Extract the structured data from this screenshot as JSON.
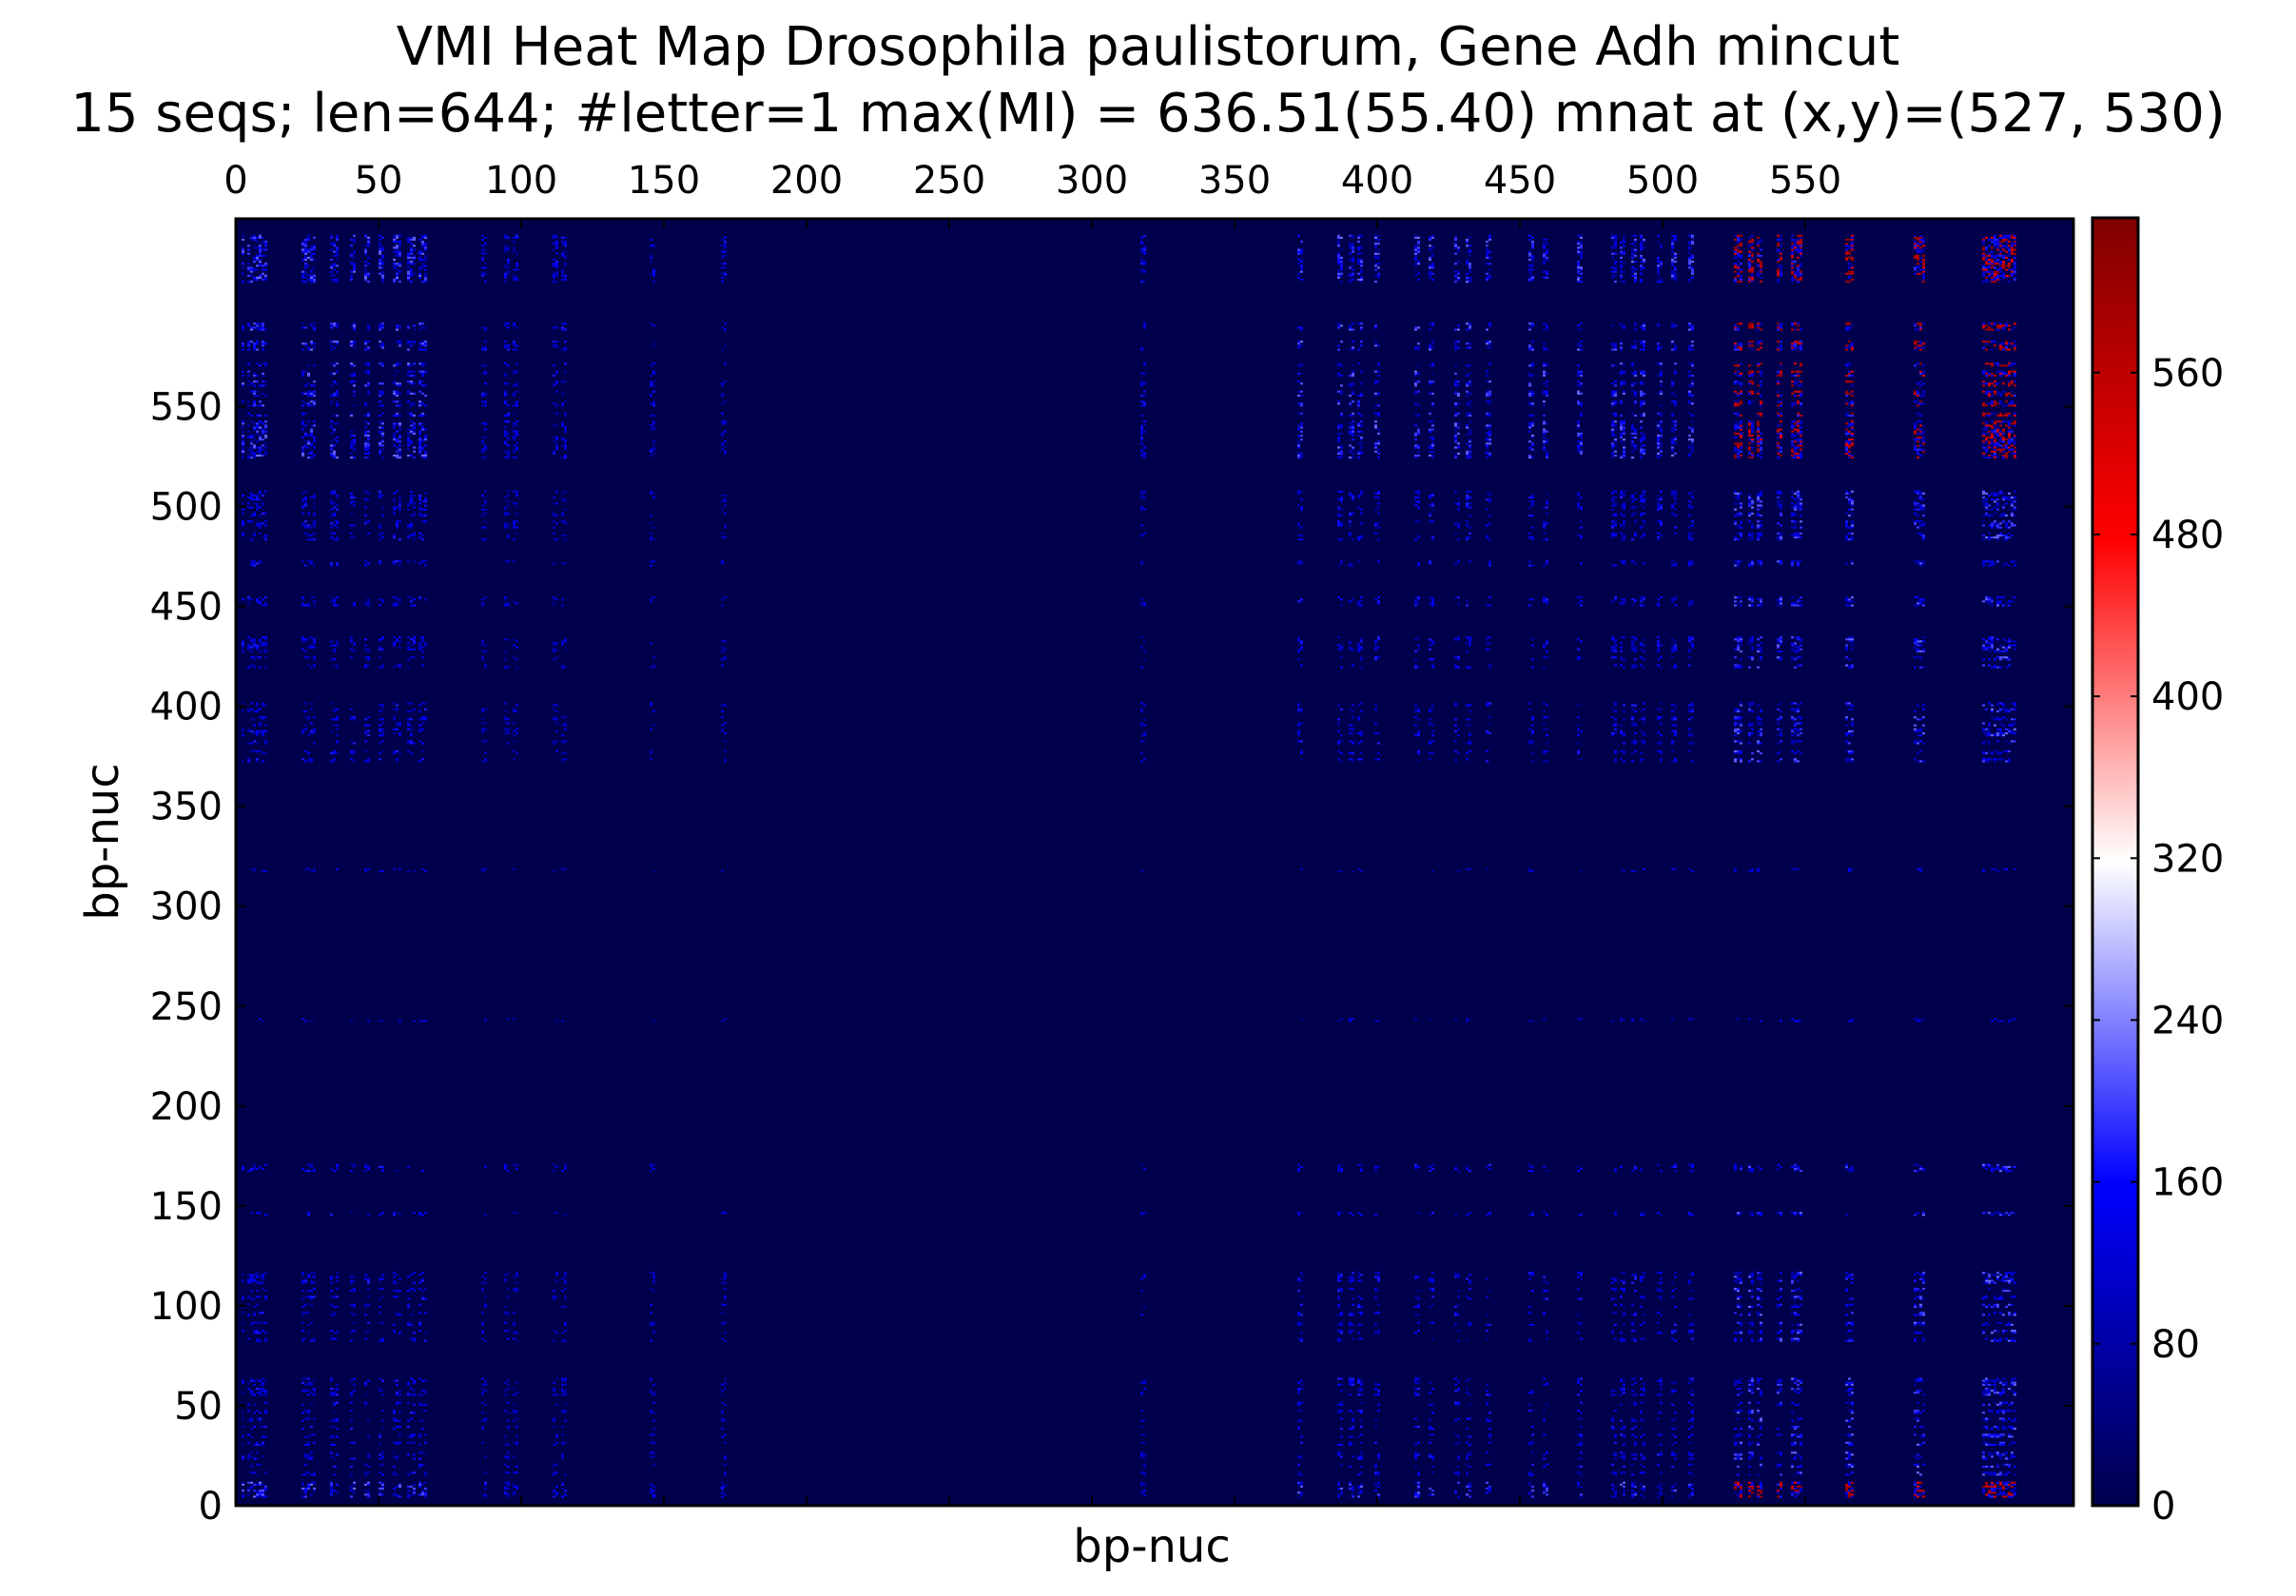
{
  "chart_data": {
    "type": "heatmap",
    "title": "VMI Heat Map Drosophila paulistorum, Gene Adh mincut",
    "subtitle": "15 seqs; len=644; #letter=1 max(MI) = 636.51(55.40) mnat at (x,y)=(527, 530)",
    "xlabel": "bp-nuc",
    "ylabel": "bp-nuc",
    "xlim": [
      0,
      644
    ],
    "ylim": [
      0,
      644
    ],
    "x_ticks": [
      0,
      50,
      100,
      150,
      200,
      250,
      300,
      350,
      400,
      450,
      500,
      550
    ],
    "y_ticks": [
      0,
      50,
      100,
      150,
      200,
      250,
      300,
      350,
      400,
      450,
      500,
      550
    ],
    "x_tick_labels": [
      "0",
      "50",
      "100",
      "150",
      "200",
      "250",
      "300",
      "350",
      "400",
      "450",
      "500",
      "550"
    ],
    "y_tick_labels": [
      "0",
      "50",
      "100",
      "150",
      "200",
      "250",
      "300",
      "350",
      "400",
      "450",
      "500",
      "550"
    ],
    "x_axis_position": "top",
    "grid": false,
    "colorbar": {
      "min": 0,
      "max": 636.51,
      "ticks": [
        0,
        80,
        160,
        240,
        320,
        400,
        480,
        560
      ],
      "tick_labels": [
        "0",
        "80",
        "160",
        "240",
        "320",
        "400",
        "480",
        "560"
      ],
      "colormap": "seismic",
      "colors": [
        "#00004c",
        "#0000ff",
        "#ffffff",
        "#ff0000",
        "#800000"
      ]
    },
    "background_color": "#00004c",
    "max_point": {
      "x": 527,
      "y": 530,
      "value": 636.51
    },
    "active_columns": [
      2,
      4,
      5,
      6,
      7,
      8,
      9,
      10,
      23,
      24,
      25,
      26,
      27,
      33,
      34,
      35,
      40,
      41,
      45,
      46,
      50,
      51,
      55,
      56,
      57,
      60,
      61,
      62,
      64,
      65,
      66,
      86,
      87,
      94,
      95,
      97,
      98,
      111,
      112,
      114,
      115,
      145,
      146,
      170,
      171,
      317,
      318,
      372,
      373,
      386,
      387,
      390,
      391,
      393,
      394,
      399,
      400,
      413,
      414,
      418,
      419,
      427,
      428,
      431,
      432,
      438,
      439,
      453,
      454,
      458,
      459,
      470,
      471,
      482,
      483,
      485,
      486,
      489,
      490,
      492,
      493,
      498,
      499,
      503,
      504,
      509,
      510,
      525,
      526,
      527,
      530,
      531,
      533,
      534,
      540,
      541,
      545,
      546,
      547,
      548,
      564,
      565,
      566,
      588,
      589,
      590,
      591,
      612,
      613,
      614,
      615,
      616,
      617,
      618,
      619,
      620,
      621,
      622,
      623
    ],
    "active_rows": [
      4,
      5,
      6,
      7,
      8,
      9,
      10,
      11,
      15,
      16,
      19,
      20,
      23,
      24,
      25,
      26,
      30,
      31,
      34,
      35,
      38,
      39,
      42,
      43,
      46,
      47,
      50,
      51,
      55,
      56,
      57,
      58,
      60,
      61,
      62,
      63,
      82,
      83,
      86,
      87,
      90,
      91,
      95,
      96,
      99,
      100,
      103,
      104,
      107,
      108,
      111,
      112,
      113,
      114,
      115,
      116,
      145,
      146,
      167,
      168,
      169,
      170,
      242,
      243,
      317,
      318,
      372,
      373,
      376,
      377,
      381,
      382,
      385,
      386,
      387,
      388,
      390,
      391,
      393,
      394,
      397,
      398,
      400,
      401,
      419,
      420,
      423,
      424,
      427,
      428,
      429,
      430,
      431,
      432,
      433,
      434,
      450,
      451,
      452,
      453,
      454,
      470,
      471,
      472,
      483,
      484,
      485,
      486,
      489,
      490,
      491,
      492,
      495,
      496,
      498,
      499,
      500,
      501,
      502,
      503,
      504,
      505,
      506,
      507,
      524,
      525,
      526,
      527,
      528,
      529,
      530,
      531,
      532,
      533,
      534,
      535,
      536,
      537,
      538,
      539,
      540,
      541,
      542,
      545,
      546,
      550,
      551,
      552,
      555,
      556,
      557,
      560,
      561,
      562,
      565,
      566,
      567,
      570,
      571,
      578,
      579,
      580,
      581,
      582,
      588,
      589,
      590,
      591,
      612,
      613,
      614,
      615,
      616,
      617,
      618,
      619,
      620,
      621,
      622,
      623,
      624,
      625,
      626,
      627,
      628,
      629,
      630,
      631,
      632,
      633,
      634,
      635
    ]
  }
}
